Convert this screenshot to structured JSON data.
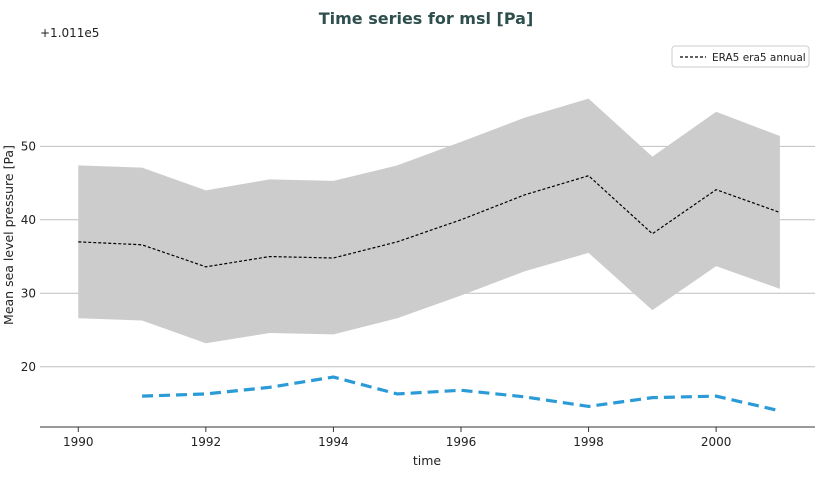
{
  "chart_data": {
    "type": "line",
    "title": "Time series for msl [Pa]",
    "xlabel": "time",
    "ylabel": "Mean sea level pressure [Pa]",
    "y_offset_label": "+1.011e5",
    "xlim": [
      1989.4,
      2001.55
    ],
    "ylim": [
      11.8,
      64.2
    ],
    "x_ticks": [
      1990,
      1992,
      1994,
      1996,
      1998,
      2000
    ],
    "y_ticks": [
      20,
      30,
      40,
      50
    ],
    "grid": "horizontal",
    "legend_position": "top-right",
    "x": [
      1990,
      1991,
      1992,
      1993,
      1994,
      1995,
      1996,
      1997,
      1998,
      1999,
      2000,
      2001
    ],
    "series": [
      {
        "name": "ERA5 era5 annual",
        "style": "dashed",
        "color": "#000000",
        "values": [
          37.0,
          36.6,
          33.6,
          35.0,
          34.8,
          37.0,
          40.0,
          43.4,
          46.0,
          38.1,
          44.1,
          41.0
        ],
        "band_upper": [
          47.4,
          47.1,
          44.0,
          45.5,
          45.3,
          47.4,
          50.6,
          53.9,
          56.5,
          48.6,
          54.7,
          51.4
        ],
        "band_lower": [
          26.6,
          26.3,
          23.2,
          24.6,
          24.4,
          26.6,
          29.7,
          33.0,
          35.5,
          27.7,
          33.7,
          30.6
        ],
        "band_color": "#cccccc"
      },
      {
        "style": "dashed",
        "color": "#2b9bd8",
        "x": [
          1991,
          1992,
          1993,
          1994,
          1995,
          1996,
          1997,
          1998,
          1999,
          2000,
          2001
        ],
        "values": [
          16.0,
          16.3,
          17.2,
          18.6,
          16.3,
          16.8,
          15.9,
          14.6,
          15.8,
          16.0,
          14.0
        ]
      }
    ]
  }
}
